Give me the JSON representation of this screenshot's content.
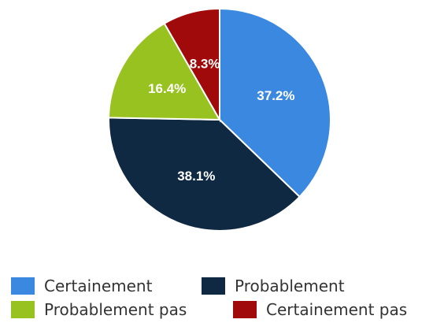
{
  "chart_data": {
    "type": "pie",
    "categories": [
      "Certainement",
      "Probablement",
      "Probablement pas",
      "Certainement pas"
    ],
    "values": [
      37.2,
      38.1,
      16.4,
      8.3
    ],
    "value_labels": [
      "37.2%",
      "38.1%",
      "16.4%",
      "8.3%"
    ],
    "colors": [
      "#3a88e0",
      "#0f2942",
      "#98c21f",
      "#a00a0a"
    ],
    "start_angle_deg": 0,
    "direction": "clockwise",
    "legend_position": "bottom"
  }
}
